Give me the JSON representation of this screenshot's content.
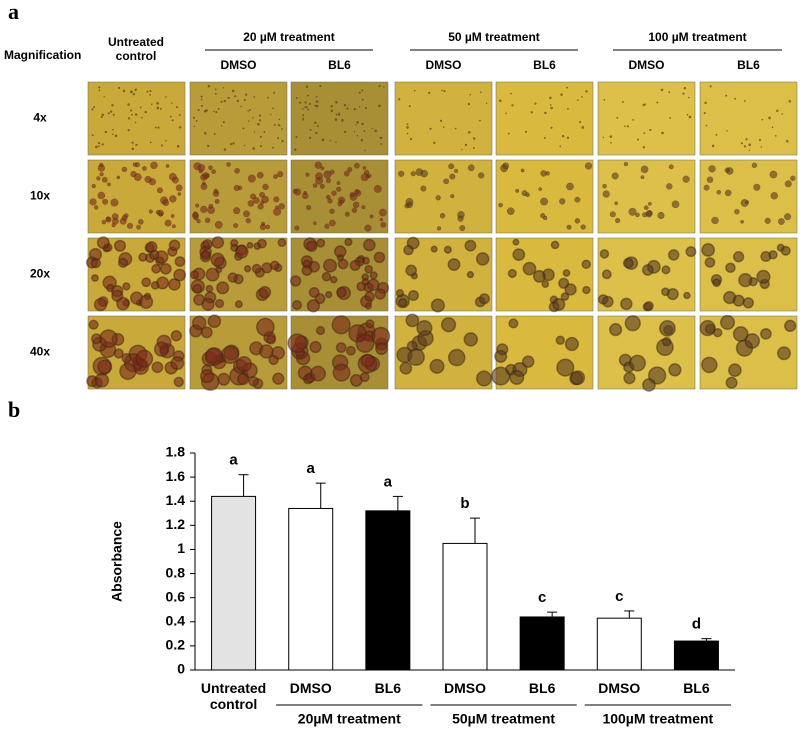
{
  "panel_a": {
    "panel_label": "a",
    "magnification_label": "Magnification",
    "control_column": "Untreated control",
    "groups": [
      {
        "label": "20 µM treatment",
        "columns": [
          "DMSO",
          "BL6"
        ]
      },
      {
        "label": "50 µM treatment",
        "columns": [
          "DMSO",
          "BL6"
        ]
      },
      {
        "label": "100 µM treatment",
        "columns": [
          "DMSO",
          "BL6"
        ]
      }
    ],
    "rows": [
      "4x",
      "10x",
      "20x",
      "40x"
    ]
  },
  "chart_data": {
    "type": "bar",
    "panel_label": "b",
    "ylabel": "Absorbance",
    "categories": [
      "Untreated control",
      "DMSO",
      "BL6",
      "DMSO",
      "BL6",
      "DMSO",
      "BL6"
    ],
    "values": [
      1.44,
      1.34,
      1.32,
      1.05,
      0.44,
      0.43,
      0.24
    ],
    "errors": [
      0.18,
      0.21,
      0.12,
      0.21,
      0.04,
      0.06,
      0.02
    ],
    "colors": [
      "#e3e3e3",
      "#ffffff",
      "#000000",
      "#ffffff",
      "#000000",
      "#ffffff",
      "#000000"
    ],
    "annotations": [
      "a",
      "a",
      "a",
      "b",
      "c",
      "c",
      "d"
    ],
    "groups": [
      "20µM treatment",
      "50µM treatment",
      "100µM treatment"
    ],
    "ylim": [
      0,
      1.8
    ],
    "yticks": [
      0,
      0.2,
      0.4,
      0.6,
      0.8,
      1,
      1.2,
      1.4,
      1.6,
      1.8
    ]
  }
}
